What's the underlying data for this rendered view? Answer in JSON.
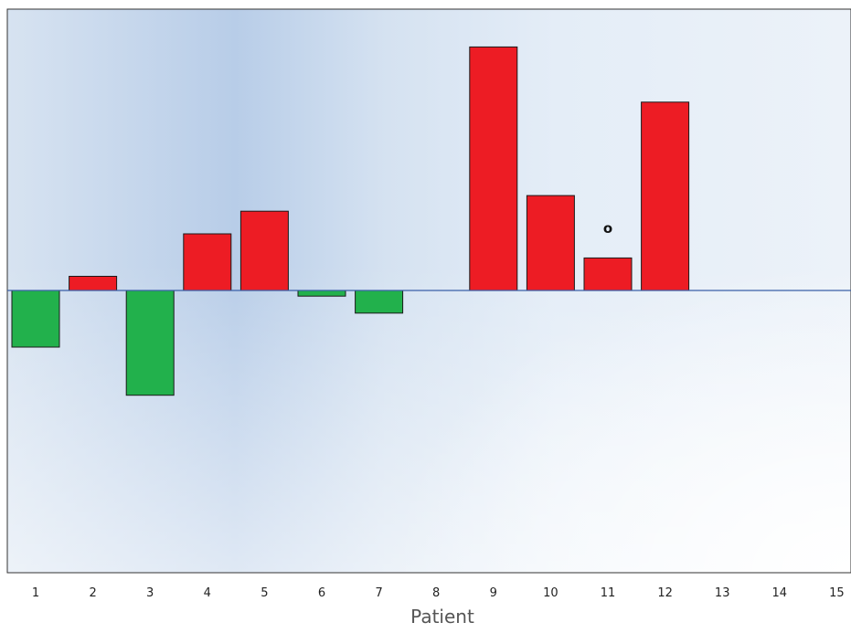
{
  "chart_data": {
    "type": "bar",
    "title": "",
    "xlabel": "Patient",
    "ylabel": "",
    "categories": [
      "1",
      "2",
      "3",
      "4",
      "5",
      "6",
      "7",
      "8",
      "9",
      "10",
      "11",
      "12",
      "13",
      "14",
      "15"
    ],
    "values": [
      -0.2,
      0.05,
      -0.37,
      0.2,
      0.28,
      -0.02,
      -0.08,
      null,
      0.86,
      0.335,
      0.115,
      0.665,
      null,
      null,
      null
    ],
    "ylim": [
      -1.0,
      1.0
    ],
    "grid": false,
    "legend": "none",
    "colors": {
      "positive": "#ed1c24",
      "negative": "#22b14c",
      "baseline": "#3a5fa8",
      "bar_outline": "#1a1a1a"
    },
    "annotations": [
      {
        "category": "11",
        "text": "o",
        "y": 0.22
      }
    ]
  }
}
